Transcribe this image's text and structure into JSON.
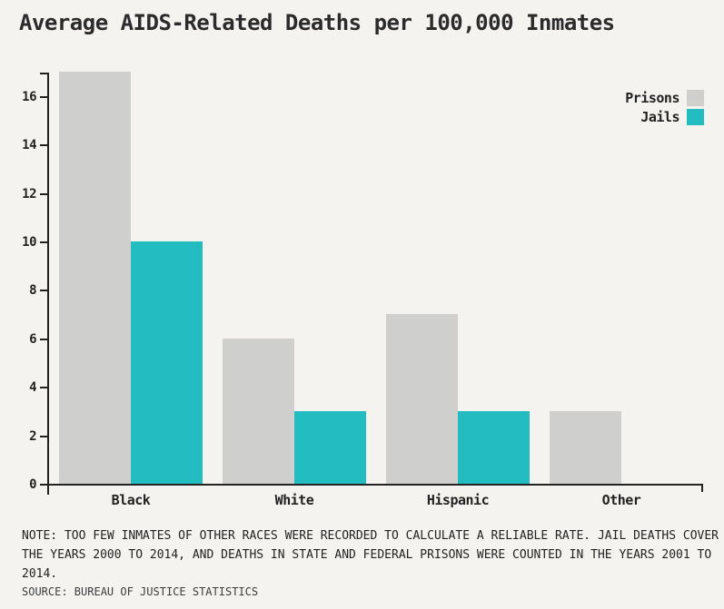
{
  "title": "Average AIDS-Related Deaths per 100,000 Inmates",
  "legend": {
    "items": [
      {
        "label": "Prisons",
        "color": "#cfcfcd"
      },
      {
        "label": "Jails",
        "color": "#22bcc1"
      }
    ]
  },
  "note": "NOTE: TOO FEW INMATES OF OTHER RACES WERE RECORDED TO CALCULATE A RELIABLE RATE. JAIL DEATHS COVER THE YEARS 2000 TO 2014, AND DEATHS IN STATE AND FEDERAL PRISONS WERE COUNTED IN THE YEARS 2001 TO 2014.",
  "source": "SOURCE: BUREAU OF JUSTICE STATISTICS",
  "colors": {
    "background": "#f4f3f0",
    "axis": "#222222",
    "text": "#222222",
    "prisons_bar": "#cfcfcd",
    "jails_bar": "#22bcc1"
  },
  "chart_data": {
    "type": "bar",
    "title": "Average AIDS-Related Deaths per 100,000 Inmates",
    "categories": [
      "Black",
      "White",
      "Hispanic",
      "Other"
    ],
    "series": [
      {
        "name": "Prisons",
        "color": "#cfcfcd",
        "values": [
          17,
          6,
          7,
          3
        ]
      },
      {
        "name": "Jails",
        "color": "#22bcc1",
        "values": [
          10,
          3,
          3,
          null
        ]
      }
    ],
    "xlabel": "",
    "ylabel": "",
    "ylim": [
      0,
      17
    ],
    "yticks": [
      0,
      2,
      4,
      6,
      8,
      10,
      12,
      14,
      16
    ],
    "grid": false,
    "legend_position": "top-right",
    "annotations": []
  }
}
